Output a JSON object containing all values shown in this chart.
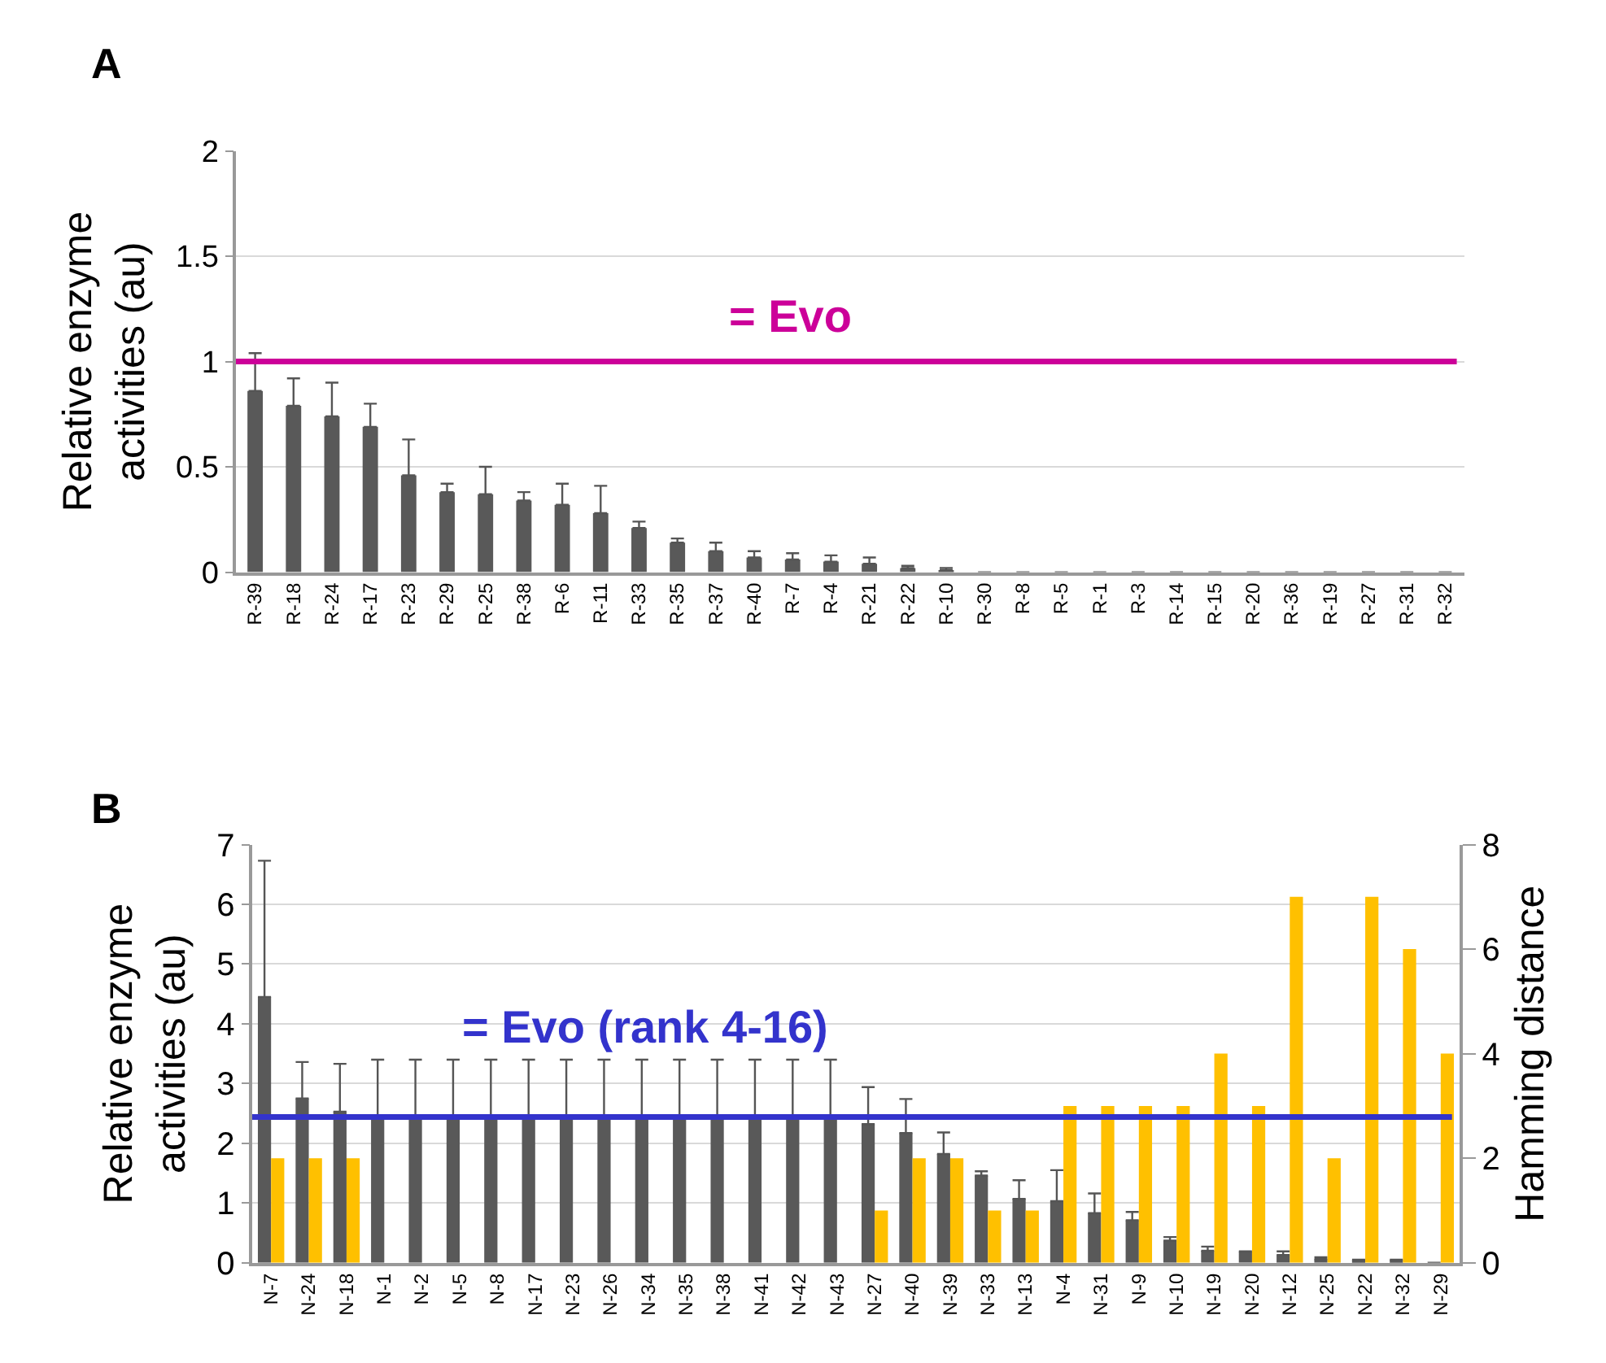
{
  "chart_data": [
    {
      "type": "bar",
      "title": "A",
      "ylabel": "Relative enzyme activities (au)",
      "categories": [
        "R-39",
        "R-18",
        "R-24",
        "R-17",
        "R-23",
        "R-29",
        "R-25",
        "R-38",
        "R-6",
        "R-11",
        "R-33",
        "R-35",
        "R-37",
        "R-40",
        "R-7",
        "R-4",
        "R-21",
        "R-22",
        "R-10",
        "R-30",
        "R-8",
        "R-5",
        "R-1",
        "R-3",
        "R-14",
        "R-15",
        "R-20",
        "R-36",
        "R-19",
        "R-27",
        "R-31",
        "R-32"
      ],
      "series": [
        {
          "color": "#595959",
          "values": [
            0.86,
            0.79,
            0.74,
            0.69,
            0.46,
            0.38,
            0.37,
            0.34,
            0.32,
            0.28,
            0.21,
            0.14,
            0.1,
            0.07,
            0.06,
            0.05,
            0.04,
            0.02,
            0.01,
            0,
            0,
            0,
            0,
            0,
            0,
            0,
            0,
            0,
            0,
            0,
            0,
            0
          ],
          "errors": [
            [
              0.86,
              1.04
            ],
            [
              0.79,
              0.92
            ],
            [
              0.74,
              0.9
            ],
            [
              0.69,
              0.8
            ],
            [
              0.46,
              0.63
            ],
            [
              0.38,
              0.42
            ],
            [
              0.37,
              0.5
            ],
            [
              0.34,
              0.38
            ],
            [
              0.32,
              0.42
            ],
            [
              0.28,
              0.41
            ],
            [
              0.21,
              0.24
            ],
            [
              0.14,
              0.16
            ],
            [
              0.1,
              0.14
            ],
            [
              0.07,
              0.1
            ],
            [
              0.06,
              0.09
            ],
            [
              0.05,
              0.08
            ],
            [
              0.04,
              0.07
            ],
            [
              0.02,
              0.03
            ],
            [
              0.01,
              0.02
            ],
            null,
            null,
            null,
            null,
            null,
            null,
            null,
            null,
            null,
            null,
            null,
            null,
            null
          ]
        }
      ],
      "ylim": [
        0,
        2
      ],
      "yticks": [
        0,
        0.5,
        1,
        1.5,
        2
      ],
      "grid": "y",
      "ref_lines": [
        {
          "axis": "y",
          "value": 1,
          "label": "= Evo",
          "color": "#cc0099"
        }
      ]
    },
    {
      "type": "bar",
      "title": "B",
      "ylabel": "Relative enzyme activities (au)",
      "y2label": "Hamming distance",
      "categories": [
        "N-7",
        "N-24",
        "N-18",
        "N-1",
        "N-2",
        "N-5",
        "N-8",
        "N-17",
        "N-23",
        "N-26",
        "N-34",
        "N-35",
        "N-38",
        "N-41",
        "N-42",
        "N-43",
        "N-27",
        "N-40",
        "N-39",
        "N-33",
        "N-13",
        "N-4",
        "N-31",
        "N-9",
        "N-10",
        "N-19",
        "N-20",
        "N-12",
        "N-25",
        "N-22",
        "N-32",
        "N-29"
      ],
      "series": [
        {
          "color": "#595959",
          "values": [
            4.45,
            2.75,
            2.53,
            2.44,
            2.44,
            2.44,
            2.44,
            2.44,
            2.44,
            2.44,
            2.44,
            2.44,
            2.44,
            2.44,
            2.44,
            2.44,
            2.32,
            2.17,
            1.82,
            1.46,
            1.07,
            1.03,
            0.83,
            0.71,
            0.37,
            0.2,
            0.19,
            0.13,
            0.06,
            0.05,
            0.05,
            0
          ],
          "errors": [
            [
              4.45,
              6.73
            ],
            [
              2.75,
              3.36
            ],
            [
              2.53,
              3.33
            ],
            [
              2.44,
              3.4
            ],
            [
              2.44,
              3.4
            ],
            [
              2.44,
              3.4
            ],
            [
              2.44,
              3.4
            ],
            [
              2.44,
              3.4
            ],
            [
              2.44,
              3.4
            ],
            [
              2.44,
              3.4
            ],
            [
              2.44,
              3.4
            ],
            [
              2.44,
              3.4
            ],
            [
              2.44,
              3.4
            ],
            [
              2.44,
              3.4
            ],
            [
              2.44,
              3.4
            ],
            [
              2.44,
              3.4
            ],
            [
              2.32,
              2.94
            ],
            [
              2.17,
              2.74
            ],
            [
              1.82,
              2.18
            ],
            [
              1.46,
              1.53
            ],
            [
              1.07,
              1.38
            ],
            [
              1.03,
              1.55
            ],
            [
              0.83,
              1.16
            ],
            [
              0.71,
              0.85
            ],
            [
              0.37,
              0.43
            ],
            [
              0.2,
              0.27
            ],
            null,
            [
              0.13,
              0.19
            ],
            [
              0.06,
              0.09
            ],
            null,
            null,
            null
          ]
        },
        {
          "color": "#ffc000",
          "axis": "y2",
          "values": [
            2,
            2,
            2,
            0,
            0,
            0,
            0,
            0,
            0,
            0,
            0,
            0,
            0,
            0,
            0,
            0,
            1,
            2,
            2,
            1,
            1,
            3,
            3,
            3,
            3,
            4,
            3,
            7,
            2,
            7,
            6,
            4
          ]
        }
      ],
      "ylim": [
        0,
        7
      ],
      "yticks": [
        0,
        1,
        2,
        3,
        4,
        5,
        6,
        7
      ],
      "y2lim": [
        0,
        8
      ],
      "y2ticks": [
        0,
        2,
        4,
        6,
        8
      ],
      "grid": "y",
      "ref_lines": [
        {
          "axis": "y",
          "value": 2.44,
          "label": "= Evo (rank 4-16)",
          "color": "#3333cc"
        }
      ]
    }
  ]
}
